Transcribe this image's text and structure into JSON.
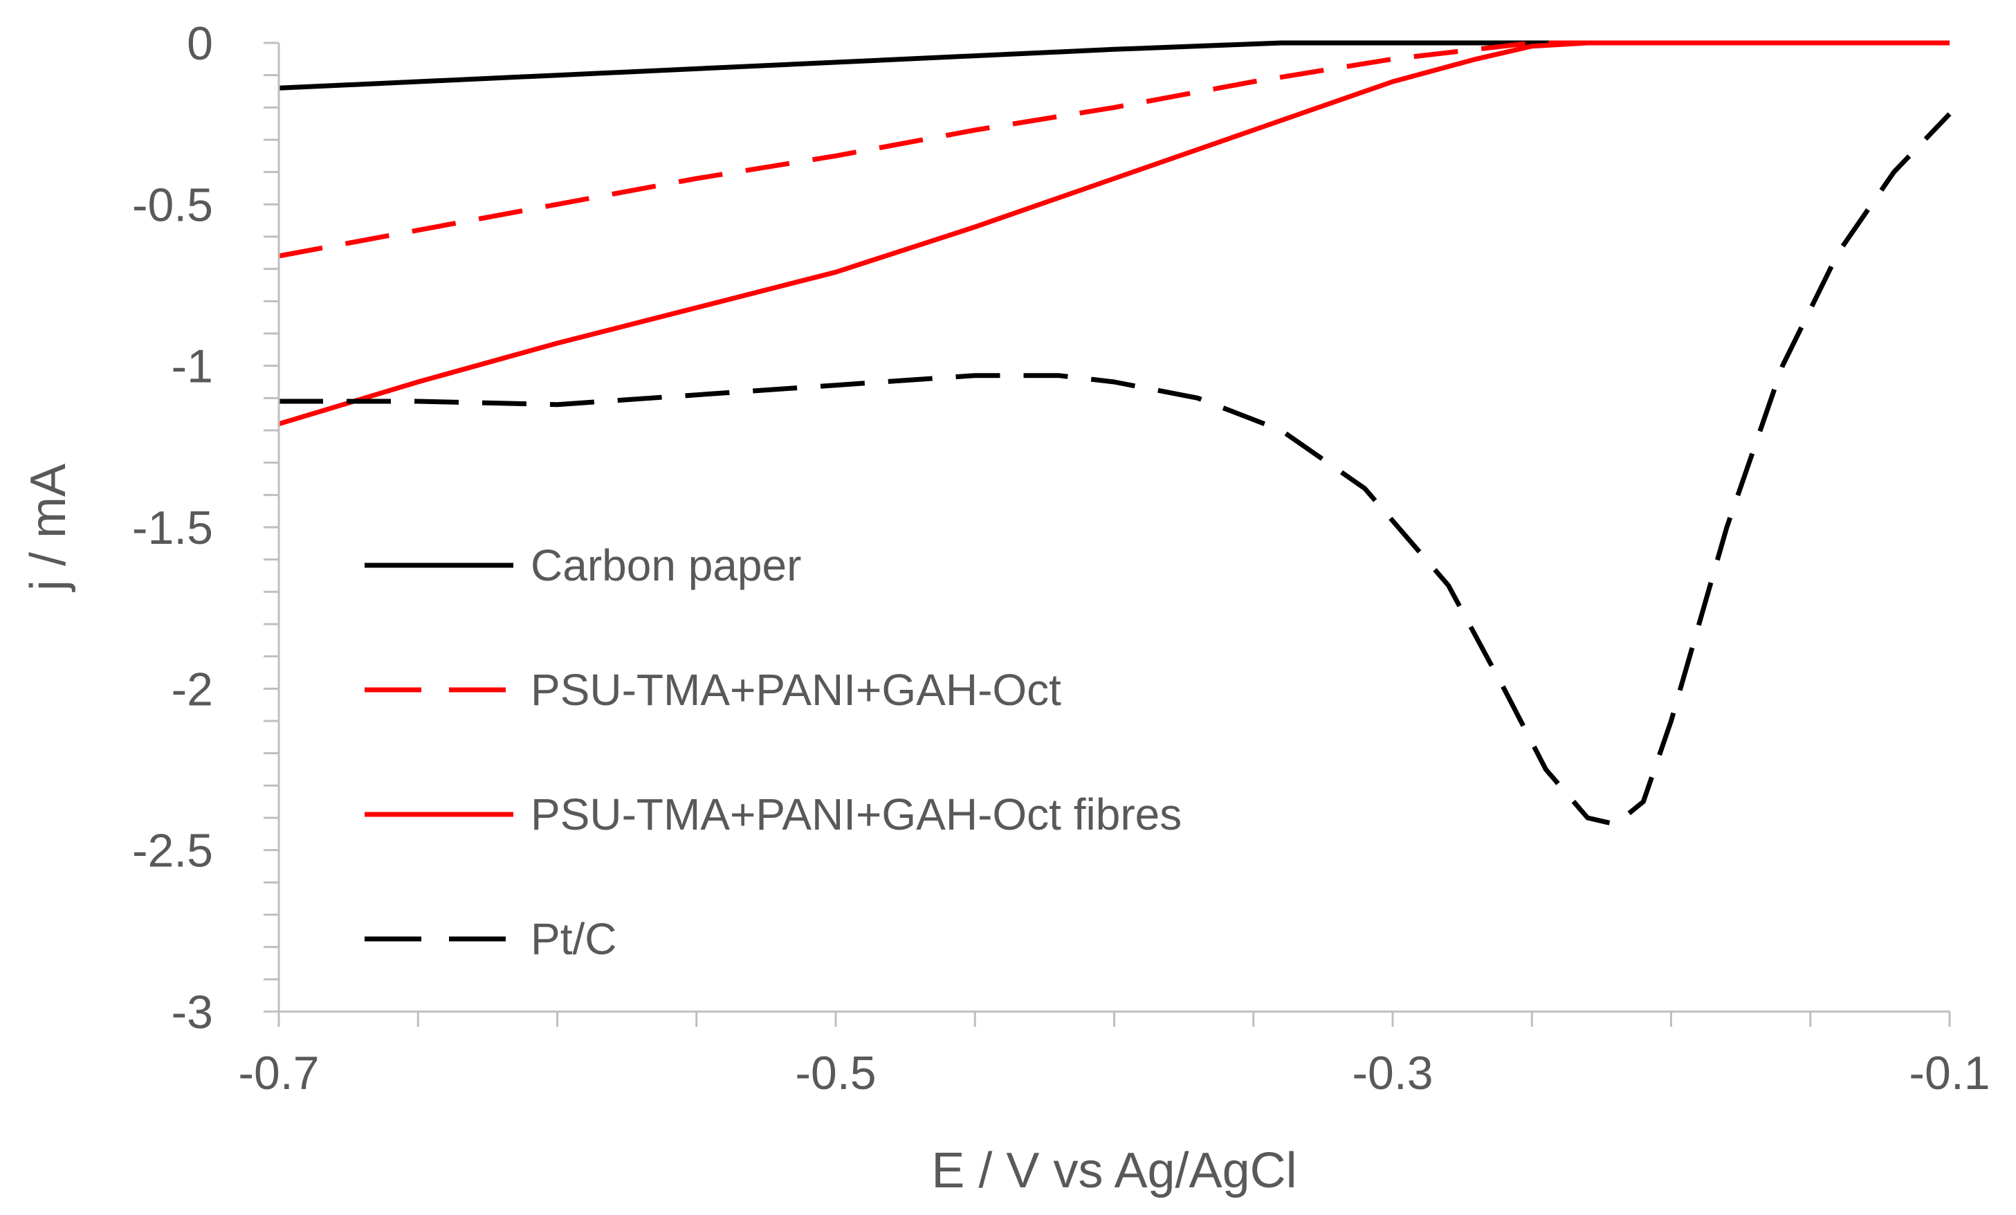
{
  "chart_data": {
    "type": "line",
    "title": "",
    "xlabel": "E / V vs Ag/AgCl",
    "ylabel": "j / mA",
    "xlim": [
      -0.7,
      -0.1
    ],
    "ylim": [
      -3,
      0
    ],
    "xticks": [
      -0.7,
      -0.5,
      -0.3,
      -0.1
    ],
    "xtick_labels": [
      "-0.7",
      "-0.5",
      "-0.3",
      "-0.1"
    ],
    "yticks": [
      0,
      -0.5,
      -1,
      -1.5,
      -2,
      -2.5,
      -3
    ],
    "ytick_labels": [
      "0",
      "-0.5",
      "-1",
      "-1.5",
      "-2",
      "-2.5",
      "-3"
    ],
    "x_minor_step": 0.05,
    "y_minor_step": 0.1,
    "grid": false,
    "legend_position": "left",
    "series": [
      {
        "name": "Carbon paper",
        "color": "#000000",
        "dash": "solid",
        "x": [
          -0.7,
          -0.6,
          -0.5,
          -0.4,
          -0.34,
          -0.3,
          -0.1
        ],
        "y": [
          -0.14,
          -0.1,
          -0.06,
          -0.02,
          0,
          0,
          0
        ]
      },
      {
        "name": "PSU-TMA+PANI+GAH-Oct",
        "color": "#ff0000",
        "dash": "dashed",
        "x": [
          -0.7,
          -0.65,
          -0.6,
          -0.55,
          -0.5,
          -0.45,
          -0.4,
          -0.35,
          -0.3,
          -0.27,
          -0.25,
          -0.23,
          -0.2,
          -0.15,
          -0.1
        ],
        "y": [
          -0.66,
          -0.58,
          -0.5,
          -0.42,
          -0.35,
          -0.27,
          -0.2,
          -0.12,
          -0.05,
          -0.02,
          0,
          0,
          0,
          0,
          0
        ]
      },
      {
        "name": "PSU-TMA+PANI+GAH-Oct fibres",
        "color": "#ff0000",
        "dash": "solid",
        "x": [
          -0.7,
          -0.65,
          -0.6,
          -0.55,
          -0.5,
          -0.45,
          -0.4,
          -0.35,
          -0.3,
          -0.27,
          -0.25,
          -0.23,
          -0.2,
          -0.15,
          -0.1
        ],
        "y": [
          -1.18,
          -1.05,
          -0.93,
          -0.82,
          -0.71,
          -0.57,
          -0.42,
          -0.27,
          -0.12,
          -0.05,
          -0.01,
          0,
          0,
          0,
          0
        ]
      },
      {
        "name": "Pt/C",
        "color": "#000000",
        "dash": "dashed",
        "x": [
          -0.7,
          -0.65,
          -0.6,
          -0.55,
          -0.5,
          -0.45,
          -0.42,
          -0.4,
          -0.37,
          -0.34,
          -0.31,
          -0.28,
          -0.26,
          -0.245,
          -0.23,
          -0.22,
          -0.21,
          -0.2,
          -0.19,
          -0.18,
          -0.16,
          -0.14,
          -0.12,
          -0.1
        ],
        "y": [
          -1.11,
          -1.11,
          -1.12,
          -1.09,
          -1.06,
          -1.03,
          -1.03,
          -1.05,
          -1.1,
          -1.2,
          -1.38,
          -1.68,
          -2.0,
          -2.25,
          -2.4,
          -2.42,
          -2.35,
          -2.1,
          -1.8,
          -1.5,
          -1.0,
          -0.65,
          -0.4,
          -0.22
        ]
      }
    ]
  }
}
